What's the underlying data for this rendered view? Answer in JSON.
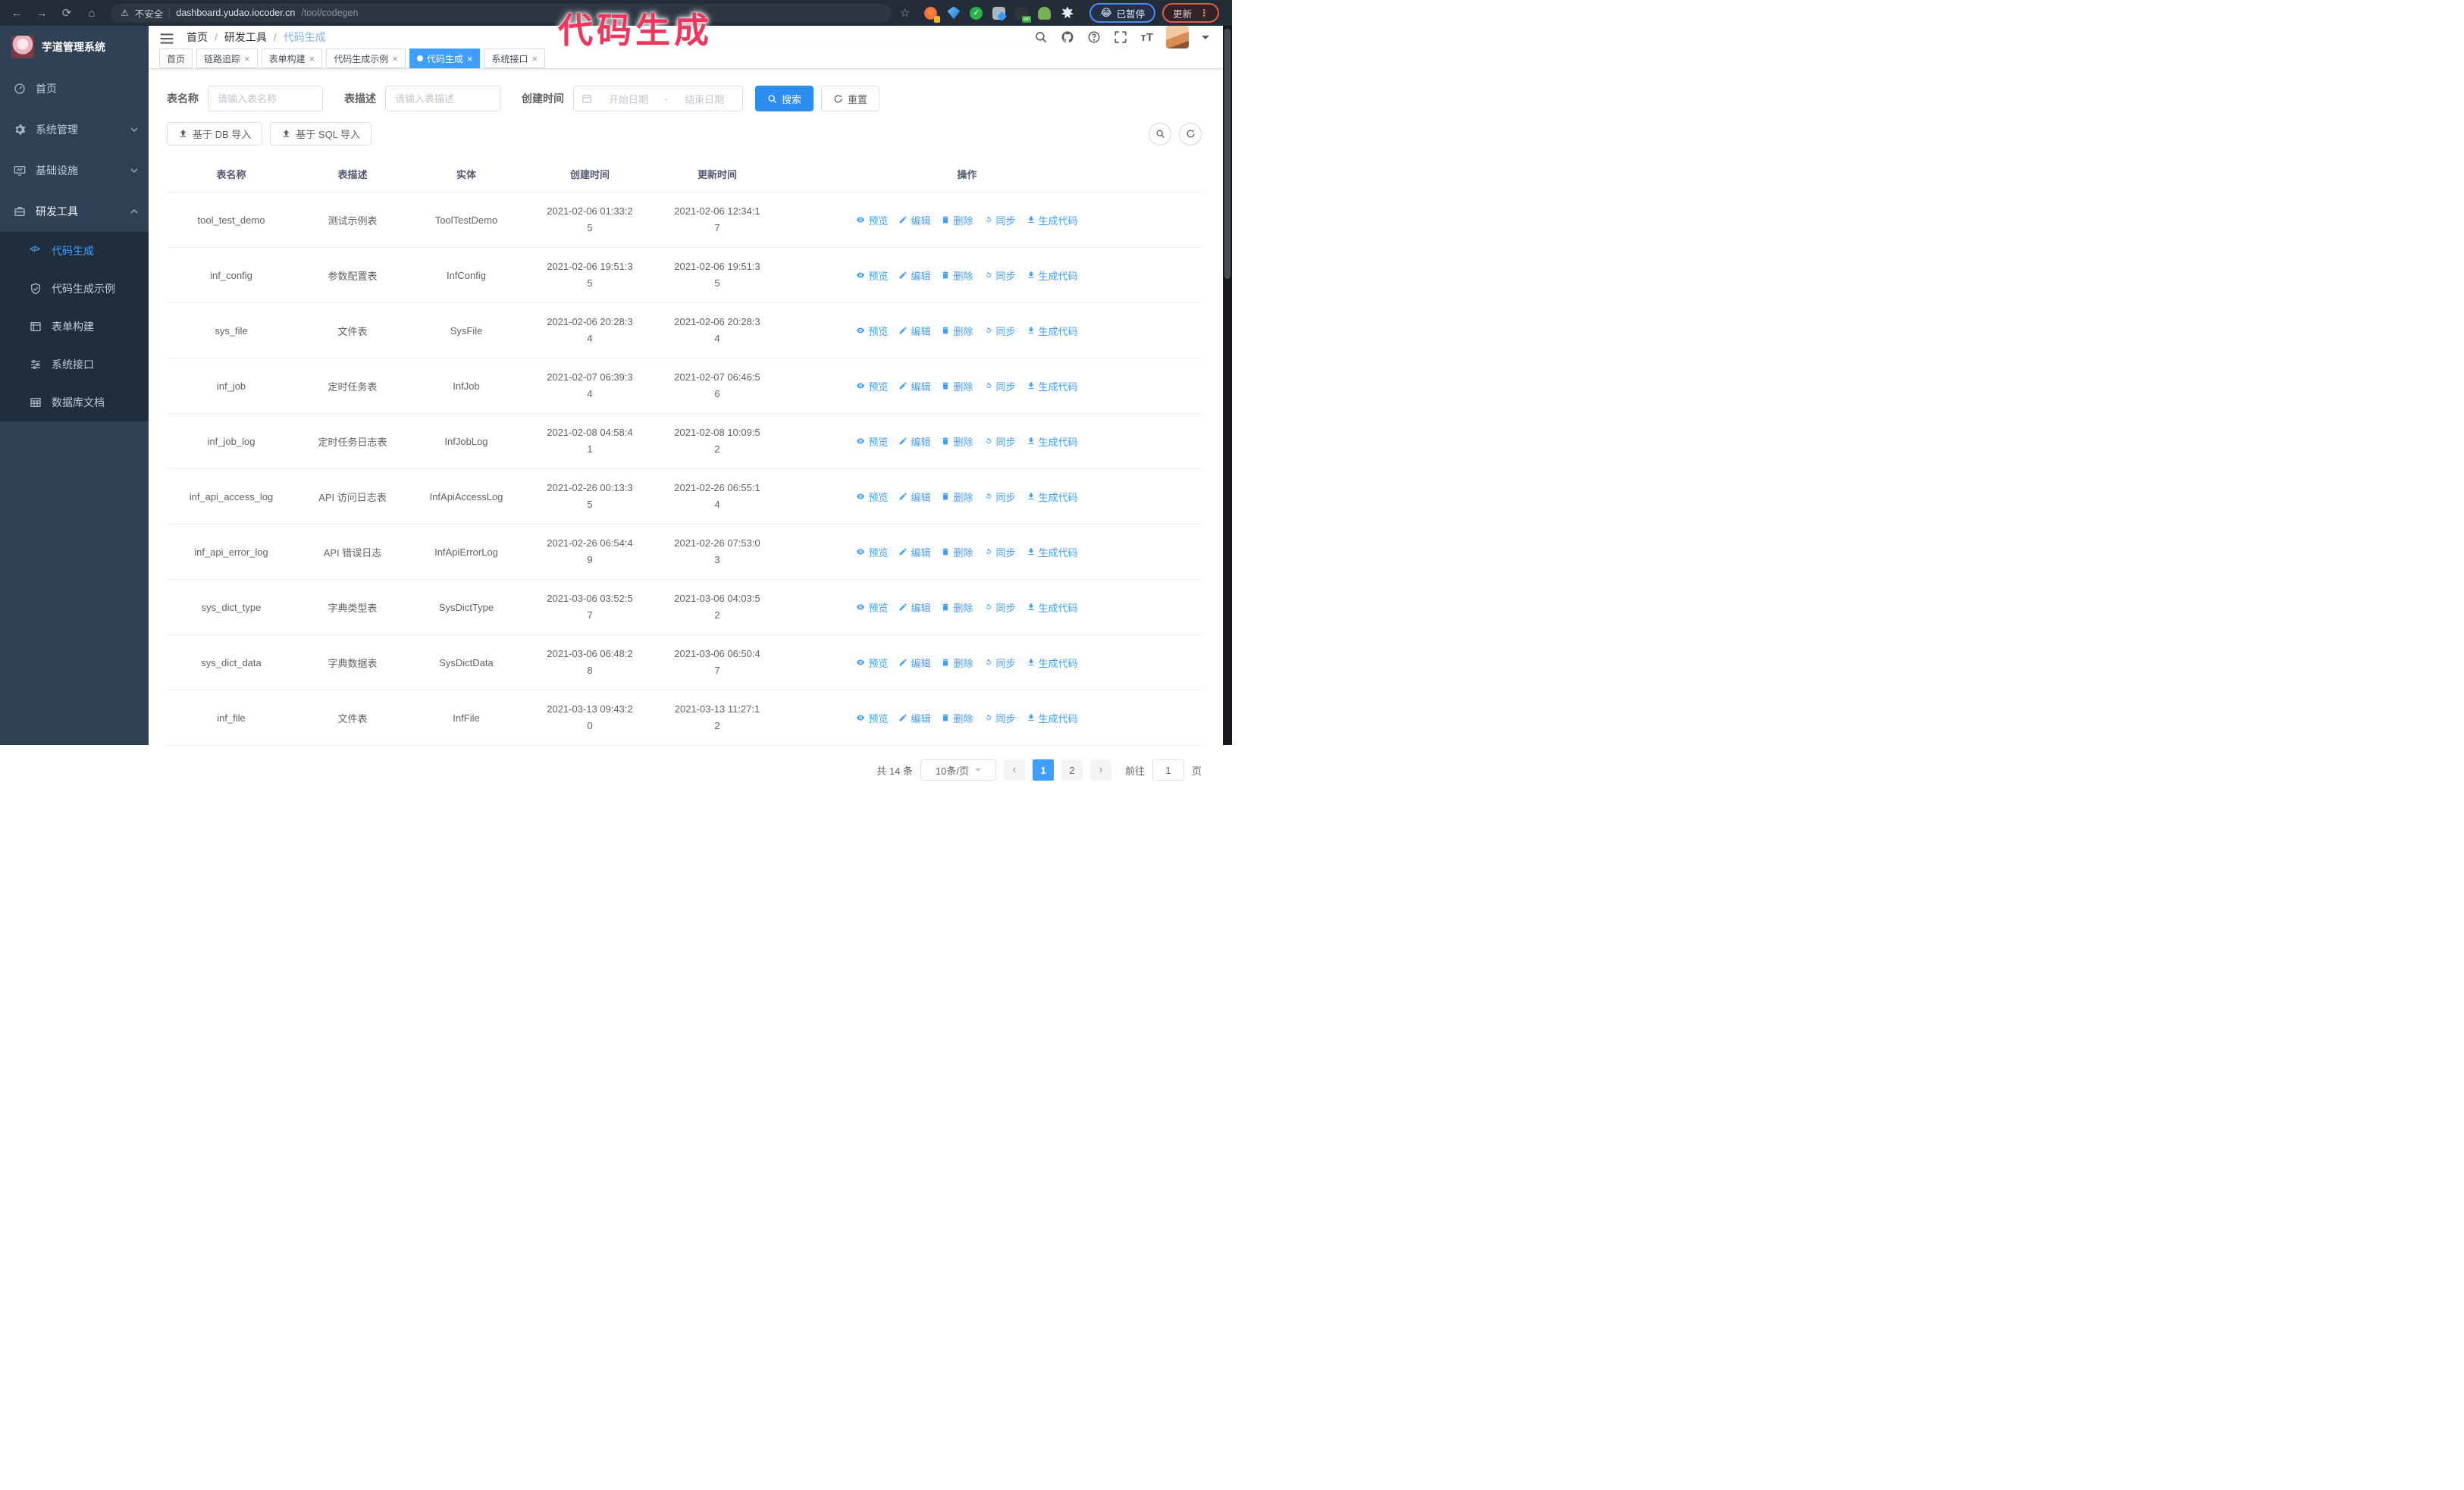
{
  "browser": {
    "security_label": "不安全",
    "url_host": "dashboard.yudao.iocoder.cn",
    "url_path": "/tool/codegen",
    "paused_label": "已暂停",
    "paused_emoji": "😂",
    "update_label": "更新",
    "extension_badge_on": "on"
  },
  "annotation": {
    "text": "代码生成",
    "color": "#ef375e"
  },
  "sidebar": {
    "title": "芋道管理系统",
    "items": [
      {
        "label": "首页",
        "icon": "dashboard-icon"
      },
      {
        "label": "系统管理",
        "icon": "gear-icon",
        "chevron": "down"
      },
      {
        "label": "基础设施",
        "icon": "monitor-icon",
        "chevron": "down"
      },
      {
        "label": "研发工具",
        "icon": "toolbox-icon",
        "chevron": "up",
        "expanded": true
      }
    ],
    "subitems": [
      {
        "label": "代码生成",
        "icon": "code-icon",
        "active": true
      },
      {
        "label": "代码生成示例",
        "icon": "shield-check-icon"
      },
      {
        "label": "表单构建",
        "icon": "form-icon"
      },
      {
        "label": "系统接口",
        "icon": "sliders-icon"
      },
      {
        "label": "数据库文档",
        "icon": "table-grid-icon"
      }
    ]
  },
  "header": {
    "breadcrumb": [
      "首页",
      "研发工具",
      "代码生成"
    ]
  },
  "tabs": [
    {
      "label": "首页",
      "closable": false
    },
    {
      "label": "链路追踪",
      "closable": true
    },
    {
      "label": "表单构建",
      "closable": true
    },
    {
      "label": "代码生成示例",
      "closable": true
    },
    {
      "label": "代码生成",
      "closable": true,
      "active": true
    },
    {
      "label": "系统接口",
      "closable": true
    }
  ],
  "filters": {
    "table_name_label": "表名称",
    "table_name_placeholder": "请输入表名称",
    "table_desc_label": "表描述",
    "table_desc_placeholder": "请输入表描述",
    "create_time_label": "创建时间",
    "start_date_placeholder": "开始日期",
    "range_separator": "-",
    "end_date_placeholder": "结束日期",
    "search_label": "搜索",
    "reset_label": "重置"
  },
  "toolbar": {
    "import_db_label": "基于 DB 导入",
    "import_sql_label": "基于 SQL 导入"
  },
  "table": {
    "columns": [
      "表名称",
      "表描述",
      "实体",
      "创建时间",
      "更新时间",
      "操作"
    ],
    "actions": [
      "预览",
      "编辑",
      "删除",
      "同步",
      "生成代码"
    ],
    "rows": [
      {
        "name": "tool_test_demo",
        "desc": "测试示例表",
        "entity": "ToolTestDemo",
        "created": "2021-02-06 01:33:25",
        "updated": "2021-02-06 12:34:17"
      },
      {
        "name": "inf_config",
        "desc": "参数配置表",
        "entity": "InfConfig",
        "created": "2021-02-06 19:51:35",
        "updated": "2021-02-06 19:51:35"
      },
      {
        "name": "sys_file",
        "desc": "文件表",
        "entity": "SysFile",
        "created": "2021-02-06 20:28:34",
        "updated": "2021-02-06 20:28:34"
      },
      {
        "name": "inf_job",
        "desc": "定时任务表",
        "entity": "InfJob",
        "created": "2021-02-07 06:39:34",
        "updated": "2021-02-07 06:46:56"
      },
      {
        "name": "inf_job_log",
        "desc": "定时任务日志表",
        "entity": "InfJobLog",
        "created": "2021-02-08 04:58:41",
        "updated": "2021-02-08 10:09:52"
      },
      {
        "name": "inf_api_access_log",
        "desc": "API 访问日志表",
        "entity": "InfApiAccessLog",
        "created": "2021-02-26 00:13:35",
        "updated": "2021-02-26 06:55:14"
      },
      {
        "name": "inf_api_error_log",
        "desc": "API 错误日志",
        "entity": "InfApiErrorLog",
        "created": "2021-02-26 06:54:49",
        "updated": "2021-02-26 07:53:03"
      },
      {
        "name": "sys_dict_type",
        "desc": "字典类型表",
        "entity": "SysDictType",
        "created": "2021-03-06 03:52:57",
        "updated": "2021-03-06 04:03:52"
      },
      {
        "name": "sys_dict_data",
        "desc": "字典数据表",
        "entity": "SysDictData",
        "created": "2021-03-06 06:48:28",
        "updated": "2021-03-06 06:50:47"
      },
      {
        "name": "inf_file",
        "desc": "文件表",
        "entity": "InfFile",
        "created": "2021-03-13 09:43:20",
        "updated": "2021-03-13 11:27:12"
      }
    ]
  },
  "pagination": {
    "total": "共 14 条",
    "page_size": "10条/页",
    "pages": [
      "1",
      "2"
    ],
    "active_page": "1",
    "goto_label": "前往",
    "goto_value": "1",
    "page_suffix": "页"
  },
  "colors": {
    "accent": "#409eff",
    "sidebar_bg": "#304156",
    "submenu_bg": "#1f2d3d",
    "annotation": "#ef375e"
  }
}
